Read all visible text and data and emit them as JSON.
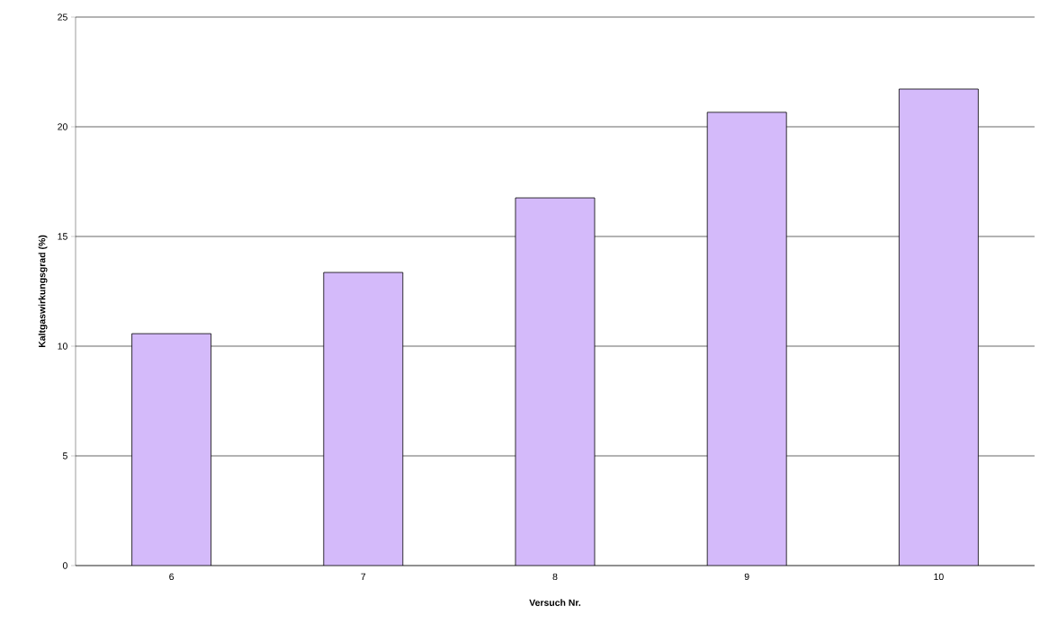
{
  "chart_data": {
    "type": "bar",
    "xlabel": "Versuch Nr.",
    "ylabel": "Kaltgaswirkungsgrad (%)",
    "categories": [
      "6",
      "7",
      "8",
      "9",
      "10"
    ],
    "values": [
      10.57,
      13.36,
      16.76,
      20.66,
      21.72
    ],
    "color": "#d4bafa",
    "ylim": [
      0,
      25
    ],
    "yticks": [
      0,
      5,
      10,
      15,
      20,
      25
    ],
    "grid": "y"
  }
}
